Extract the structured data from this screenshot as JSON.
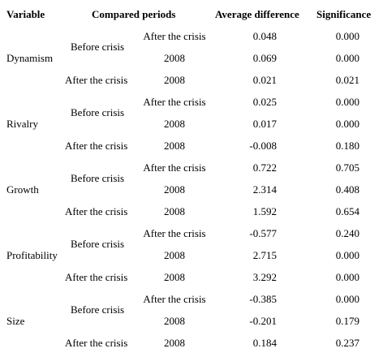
{
  "headers": {
    "variable": "Variable",
    "compared_periods": "Compared periods",
    "average_difference": "Average difference",
    "significance": "Significance"
  },
  "groups": [
    {
      "variable": "Dynamism",
      "before_label": "Before crisis",
      "rows": [
        {
          "period_a": "",
          "period_b": "After the crisis",
          "avg_diff": "0.048",
          "significance": "0.000"
        },
        {
          "period_a": "",
          "period_b": "2008",
          "avg_diff": "0.069",
          "significance": "0.000"
        },
        {
          "period_a": "After the crisis",
          "period_b": "2008",
          "avg_diff": "0.021",
          "significance": "0.021"
        }
      ]
    },
    {
      "variable": "Rivalry",
      "before_label": "Before crisis",
      "rows": [
        {
          "period_a": "",
          "period_b": "After the crisis",
          "avg_diff": "0.025",
          "significance": "0.000"
        },
        {
          "period_a": "",
          "period_b": "2008",
          "avg_diff": "0.017",
          "significance": "0.000"
        },
        {
          "period_a": "After the crisis",
          "period_b": "2008",
          "avg_diff": "-0.008",
          "significance": "0.180"
        }
      ]
    },
    {
      "variable": "Growth",
      "before_label": "Before crisis",
      "rows": [
        {
          "period_a": "",
          "period_b": "After the crisis",
          "avg_diff": "0.722",
          "significance": "0.705"
        },
        {
          "period_a": "",
          "period_b": "2008",
          "avg_diff": "2.314",
          "significance": "0.408"
        },
        {
          "period_a": "After the crisis",
          "period_b": "2008",
          "avg_diff": "1.592",
          "significance": "0.654"
        }
      ]
    },
    {
      "variable": "Profitability",
      "before_label": "Before crisis",
      "rows": [
        {
          "period_a": "",
          "period_b": "After the crisis",
          "avg_diff": "-0.577",
          "significance": "0.240"
        },
        {
          "period_a": "",
          "period_b": "2008",
          "avg_diff": "2.715",
          "significance": "0.000"
        },
        {
          "period_a": "After the crisis",
          "period_b": "2008",
          "avg_diff": "3.292",
          "significance": "0.000"
        }
      ]
    },
    {
      "variable": "Size",
      "before_label": "Before crisis",
      "rows": [
        {
          "period_a": "",
          "period_b": "After the crisis",
          "avg_diff": "-0.385",
          "significance": "0.000"
        },
        {
          "period_a": "",
          "period_b": "2008",
          "avg_diff": "-0.201",
          "significance": "0.179"
        },
        {
          "period_a": "After the crisis",
          "period_b": "2008",
          "avg_diff": "0.184",
          "significance": "0.237"
        }
      ]
    }
  ]
}
